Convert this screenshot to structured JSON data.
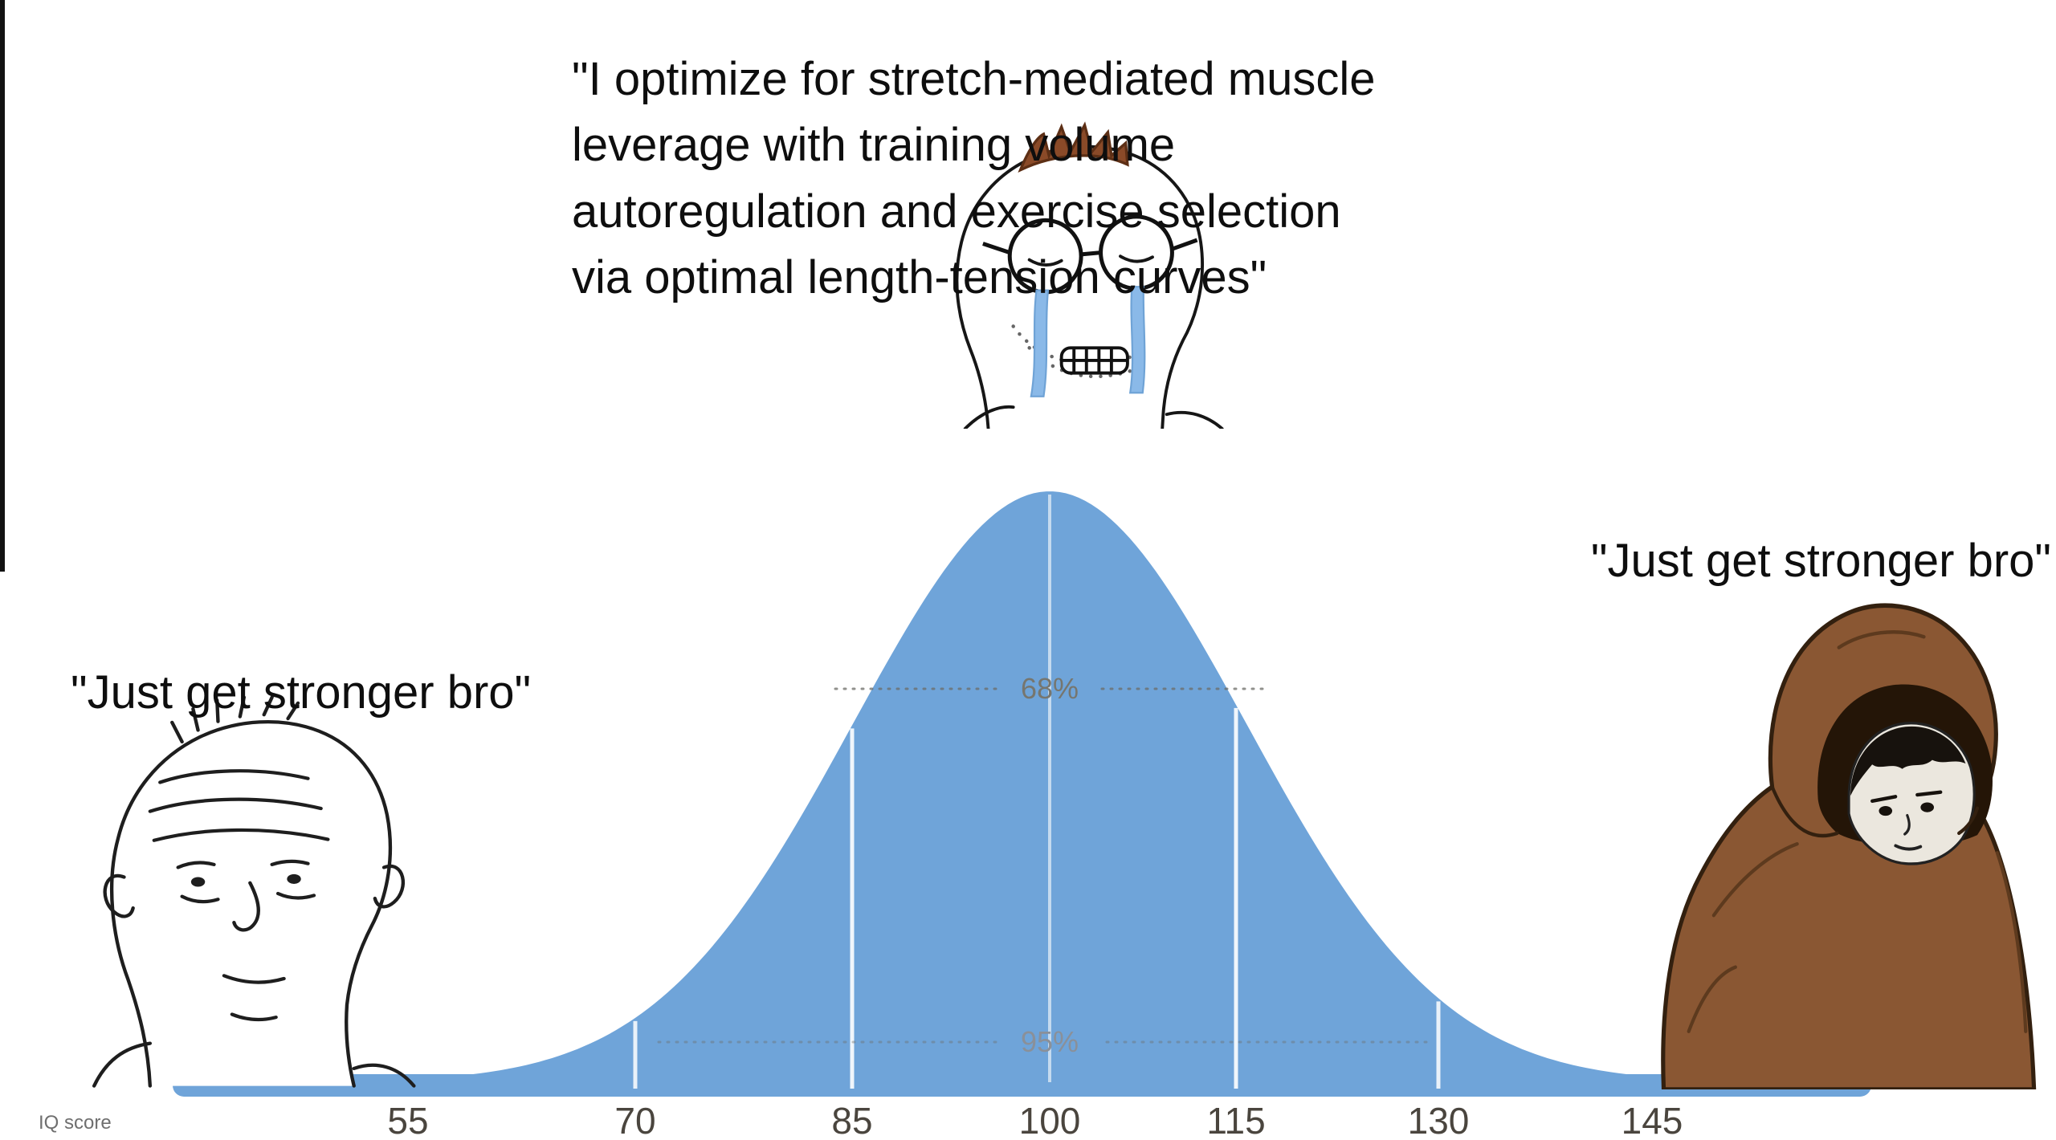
{
  "meme": {
    "description": "IQ bell curve wojak meme about strength training"
  },
  "quotes": {
    "midwit_lines": [
      "\"I optimize for stretch-mediated muscle",
      "leverage with training volume",
      "autoregulation and exercise selection",
      "via optimal length-tension curves\"",
      "\"I optimize for stretch-mediated muscle leverage with training volume autoregulation and exercise selection via optimal length-tension curves\""
    ],
    "left": "\"Just get stronger bro\"",
    "right": "\"Just get stronger bro\""
  },
  "chart_data": {
    "type": "area",
    "distribution": "normal",
    "title": "",
    "xlabel": "IQ score",
    "ylabel": "",
    "x_ticks": [
      "55",
      "70",
      "85",
      "100",
      "115",
      "130",
      "145"
    ],
    "mean": 100,
    "sd": 15,
    "annotations": {
      "one_sigma": "68%",
      "two_sigma": "95%"
    },
    "grid": false,
    "legend": false,
    "curve_color": "#6fa4d9",
    "tick_color": "#4a453e",
    "annotation_color": "#76766f"
  }
}
